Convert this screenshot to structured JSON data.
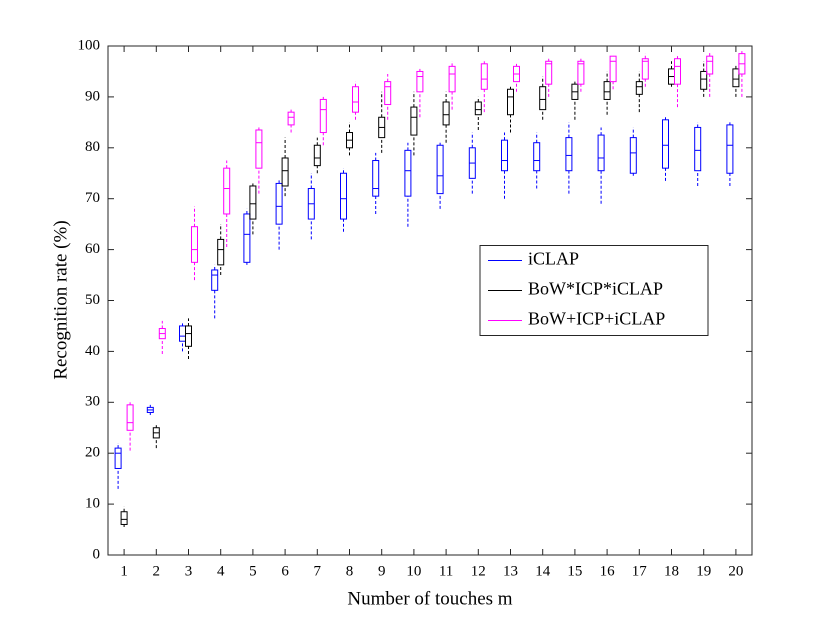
{
  "chart_data": {
    "type": "boxplot",
    "xlabel": "Number of touches m",
    "ylabel": "Recognition rate (%)",
    "categories": [
      "1",
      "2",
      "3",
      "4",
      "5",
      "6",
      "7",
      "8",
      "9",
      "10",
      "11",
      "12",
      "13",
      "14",
      "15",
      "16",
      "17",
      "18",
      "19",
      "20"
    ],
    "ylim": [
      0,
      100
    ],
    "yticks": [
      0,
      10,
      20,
      30,
      40,
      50,
      60,
      70,
      80,
      90,
      100
    ],
    "grid": false,
    "legend": "east",
    "series": [
      {
        "name": "iCLAP",
        "color": "#0000ff",
        "whisker_low": [
          13,
          27.5,
          40,
          46.5,
          57,
          60,
          62,
          63.5,
          67,
          64.5,
          68,
          71,
          70,
          72,
          71,
          69,
          74.5,
          73.5,
          72.5,
          72.5
        ],
        "q1": [
          17,
          28,
          42,
          52,
          57.5,
          65,
          66,
          66,
          70.5,
          70.5,
          71,
          74,
          75.5,
          75.5,
          75.5,
          75.5,
          75,
          76,
          75.5,
          75
        ],
        "median": [
          20,
          28.5,
          43,
          55,
          63,
          68.5,
          69,
          70,
          72,
          75.5,
          74.5,
          77,
          77.5,
          77.5,
          78.5,
          78,
          79,
          80.5,
          79.5,
          80.5
        ],
        "q3": [
          21,
          29,
          45,
          56,
          67,
          73,
          72,
          75,
          77.5,
          79.5,
          80.5,
          80,
          81.5,
          81,
          82,
          82.5,
          82,
          85.5,
          84,
          84.5
        ],
        "whisker_high": [
          22,
          29.5,
          45.5,
          57,
          68,
          74,
          75,
          76,
          79,
          81,
          81,
          83,
          83,
          83,
          85,
          84,
          84,
          86,
          85,
          85
        ]
      },
      {
        "name": "BoW*ICP*iCLAP",
        "color": "#000000",
        "whisker_low": [
          5.5,
          21,
          38.5,
          55,
          63,
          70.5,
          75,
          78.5,
          79,
          78.5,
          81,
          83.5,
          83,
          85.5,
          85.5,
          86.5,
          87,
          92,
          90,
          90
        ],
        "q1": [
          6,
          23,
          41,
          57,
          66,
          72.5,
          76.5,
          80,
          82,
          82.5,
          84.5,
          86.5,
          86.5,
          87.5,
          89.5,
          89.5,
          90.5,
          92.5,
          91.5,
          92
        ],
        "median": [
          7,
          24,
          43.5,
          60,
          69,
          75.5,
          78,
          81.5,
          84,
          86,
          86.5,
          87.5,
          90,
          89.5,
          91,
          91,
          92,
          94,
          93.5,
          93.5
        ],
        "q3": [
          8.5,
          25,
          45,
          62,
          72.5,
          78,
          80.5,
          83,
          86,
          88,
          89,
          89,
          91.5,
          92,
          92.5,
          93,
          93,
          95.5,
          95,
          95.5
        ],
        "whisker_high": [
          9.5,
          25.5,
          46.5,
          65,
          73,
          82,
          82,
          85,
          91,
          91,
          91,
          90,
          92,
          94,
          93,
          95,
          95,
          97,
          97,
          96.5
        ]
      },
      {
        "name": "BoW+ICP+iCLAP",
        "color": "#ff00ff",
        "whisker_low": [
          20.5,
          39.5,
          54,
          60.5,
          71,
          83,
          80.5,
          85.5,
          85.5,
          86,
          87.5,
          87,
          91,
          90,
          91,
          91.5,
          92,
          88,
          90,
          90
        ],
        "q1": [
          24.5,
          42.5,
          57.5,
          67,
          76,
          84.5,
          83,
          87,
          88.5,
          91,
          91,
          91.5,
          93,
          92.5,
          92.5,
          93,
          93.5,
          92.5,
          94.5,
          94.5
        ],
        "median": [
          26,
          43.5,
          60,
          72,
          81,
          86,
          87.5,
          89,
          92,
          94,
          94.5,
          93.5,
          94.5,
          96.5,
          96.5,
          97,
          97,
          96,
          97,
          96.5
        ],
        "q3": [
          29.5,
          44.5,
          64.5,
          76,
          83.5,
          87,
          89.5,
          92,
          93,
          95,
          96,
          96.5,
          96,
          97,
          97,
          98,
          97.5,
          97.5,
          98,
          98.5
        ],
        "whisker_high": [
          30,
          46,
          68.5,
          77.5,
          84,
          87.5,
          90,
          93,
          94.5,
          95.5,
          97,
          97,
          96.5,
          97.5,
          97.5,
          98,
          98.5,
          98,
          99,
          99
        ]
      }
    ]
  }
}
